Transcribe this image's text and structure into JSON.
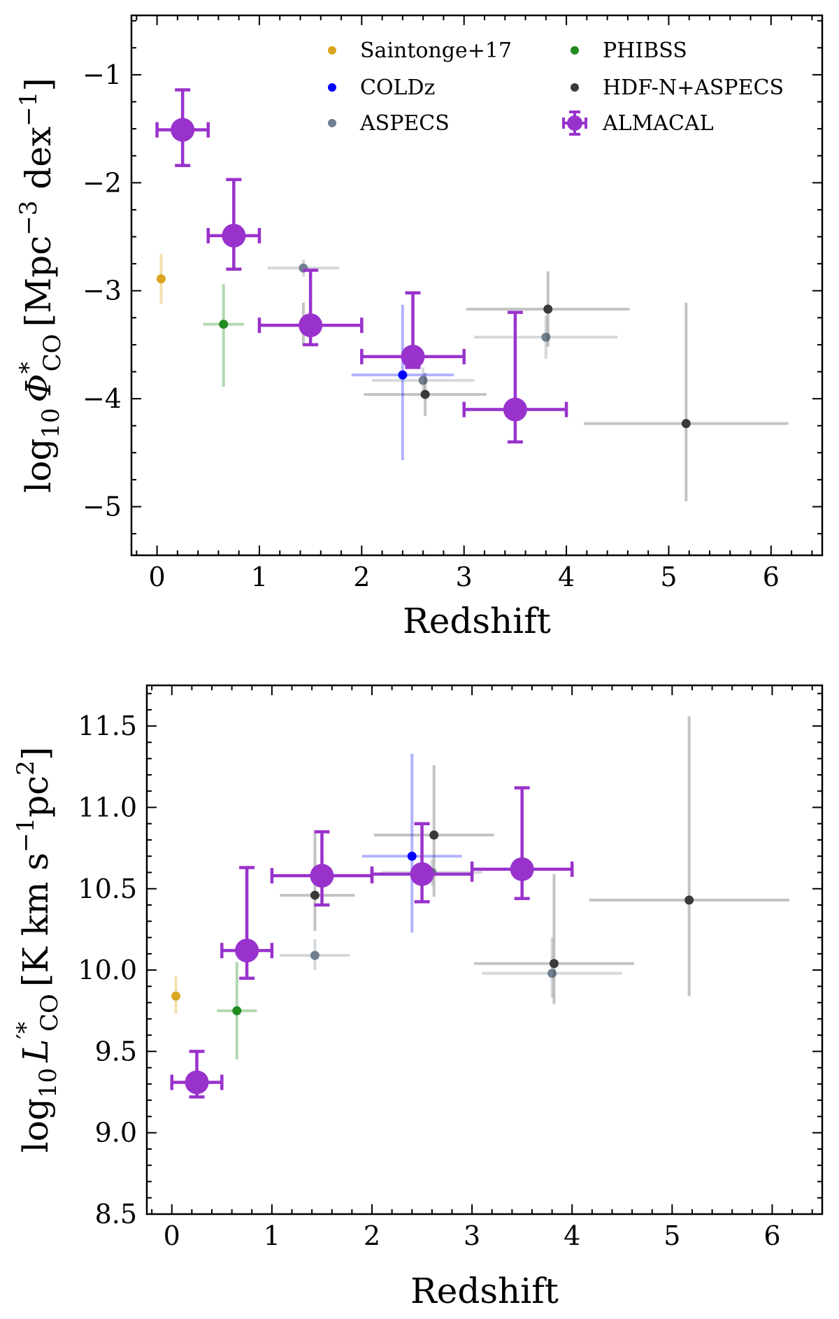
{
  "chart_data": [
    {
      "type": "scatter",
      "panel": "top",
      "xlabel": "Redshift",
      "ylabel": {
        "prefix": "log",
        "sub": "10",
        "symbol": "Φ",
        "sup": "*",
        "symsub": "CO",
        "units": "[Mpc",
        "u1sup": "−3",
        "u2": " dex",
        "u2sup": "−1",
        "close": "]"
      },
      "xlim": [
        -0.25,
        6.5
      ],
      "ylim": [
        -5.45,
        -0.45
      ],
      "xticks": [
        0,
        1,
        2,
        3,
        4,
        5,
        6
      ],
      "yticks": [
        -1,
        -2,
        -3,
        -4,
        -5
      ],
      "xtick_labels": [
        "0",
        "1",
        "2",
        "3",
        "4",
        "5",
        "6"
      ],
      "ytick_labels": [
        "−1",
        "−2",
        "−3",
        "−4",
        "−5"
      ],
      "legend": {
        "placement": "top",
        "entries": [
          {
            "label": "Saintonge+17",
            "series": "saintonge"
          },
          {
            "label": "PHIBSS",
            "series": "phibss"
          },
          {
            "label": "COLDz",
            "series": "coldz"
          },
          {
            "label": "HDF-N+ASPECS",
            "series": "hdfn"
          },
          {
            "label": "ASPECS",
            "series": "aspecs"
          },
          {
            "label": "ALMACAL",
            "series": "almacal"
          }
        ]
      },
      "series": [
        {
          "id": "saintonge",
          "name": "Saintonge+17",
          "color": "#DAA520",
          "points": [
            {
              "x": 0.04,
              "y": -2.89,
              "xerr": [
                0,
                0
              ],
              "yerr": [
                0.23,
                0.23
              ]
            }
          ]
        },
        {
          "id": "phibss",
          "name": "PHIBSS",
          "color": "#228B22",
          "points": [
            {
              "x": 0.65,
              "y": -3.31,
              "xerr": [
                0.2,
                0.2
              ],
              "yerr": [
                0.58,
                0.37
              ]
            }
          ]
        },
        {
          "id": "coldz",
          "name": "COLDz",
          "color": "#0000FF",
          "points": [
            {
              "x": 2.4,
              "y": -3.78,
              "xerr": [
                0.5,
                0.5
              ],
              "yerr": [
                0.79,
                0.65
              ]
            }
          ]
        },
        {
          "id": "aspecs",
          "name": "ASPECS",
          "color": "#708090",
          "points": [
            {
              "x": 1.43,
              "y": -2.79,
              "xerr": [
                0.35,
                0.35
              ],
              "yerr": [
                0.08,
                0.08
              ]
            },
            {
              "x": 2.6,
              "y": -3.83,
              "xerr": [
                0.5,
                0.5
              ],
              "yerr": [
                0.12,
                0.12
              ]
            },
            {
              "x": 3.8,
              "y": -3.43,
              "xerr": [
                0.7,
                0.7
              ],
              "yerr": [
                0.2,
                0.2
              ]
            }
          ]
        },
        {
          "id": "hdfn",
          "name": "HDF-N+ASPECS",
          "color": "#3a3a3a",
          "points": [
            {
              "x": 1.43,
              "y": -3.31,
              "xerr": [
                0,
                0
              ],
              "yerr": [
                0.2,
                0.2
              ]
            },
            {
              "x": 2.62,
              "y": -3.96,
              "xerr": [
                0.6,
                0.6
              ],
              "yerr": [
                0.2,
                0.2
              ]
            },
            {
              "x": 3.82,
              "y": -3.17,
              "xerr": [
                0.8,
                0.8
              ],
              "yerr": [
                0.35,
                0.35
              ]
            },
            {
              "x": 5.17,
              "y": -4.23,
              "xerr": [
                1.0,
                1.0
              ],
              "yerr": [
                0.72,
                1.12
              ]
            }
          ]
        },
        {
          "id": "almacal",
          "name": "ALMACAL",
          "color": "#9932CC",
          "points": [
            {
              "x": 0.25,
              "y": -1.51,
              "xerr": [
                0.25,
                0.25
              ],
              "yerr": [
                0.33,
                0.37
              ]
            },
            {
              "x": 0.75,
              "y": -2.49,
              "xerr": [
                0.25,
                0.25
              ],
              "yerr": [
                0.31,
                0.52
              ]
            },
            {
              "x": 1.5,
              "y": -3.32,
              "xerr": [
                0.5,
                0.5
              ],
              "yerr": [
                0.18,
                0.51
              ]
            },
            {
              "x": 2.5,
              "y": -3.61,
              "xerr": [
                0.5,
                0.5
              ],
              "yerr": [
                0.1,
                0.59
              ]
            },
            {
              "x": 3.5,
              "y": -4.1,
              "xerr": [
                0.5,
                0.5
              ],
              "yerr": [
                0.3,
                0.9
              ]
            }
          ]
        }
      ]
    },
    {
      "type": "scatter",
      "panel": "bottom",
      "xlabel": "Redshift",
      "ylabel": {
        "prefix": "log",
        "sub": "10",
        "symbol": "L",
        "sup": "′*",
        "symsub": "CO",
        "units": "[K km s",
        "u1sup": "−1",
        "u2": "pc",
        "u2sup": "2",
        "close": "]"
      },
      "xlim": [
        -0.25,
        6.5
      ],
      "ylim": [
        8.5,
        11.75
      ],
      "xticks": [
        0,
        1,
        2,
        3,
        4,
        5,
        6
      ],
      "yticks": [
        8.5,
        9.0,
        9.5,
        10.0,
        10.5,
        11.0,
        11.5
      ],
      "xtick_labels": [
        "0",
        "1",
        "2",
        "3",
        "4",
        "5",
        "6"
      ],
      "ytick_labels": [
        "8.5",
        "9.0",
        "9.5",
        "10.0",
        "10.5",
        "11.0",
        "11.5"
      ],
      "series": [
        {
          "id": "saintonge",
          "name": "Saintonge+17",
          "color": "#DAA520",
          "points": [
            {
              "x": 0.04,
              "y": 9.84,
              "xerr": [
                0,
                0
              ],
              "yerr": [
                0.11,
                0.12
              ]
            }
          ]
        },
        {
          "id": "phibss",
          "name": "PHIBSS",
          "color": "#228B22",
          "points": [
            {
              "x": 0.65,
              "y": 9.75,
              "xerr": [
                0.2,
                0.2
              ],
              "yerr": [
                0.3,
                0.3
              ]
            }
          ]
        },
        {
          "id": "coldz",
          "name": "COLDz",
          "color": "#0000FF",
          "points": [
            {
              "x": 2.4,
              "y": 10.7,
              "xerr": [
                0.5,
                0.5
              ],
              "yerr": [
                0.47,
                0.63
              ]
            }
          ]
        },
        {
          "id": "aspecs",
          "name": "ASPECS",
          "color": "#708090",
          "points": [
            {
              "x": 1.43,
              "y": 10.09,
              "xerr": [
                0.35,
                0.35
              ],
              "yerr": [
                0.09,
                0.1
              ]
            },
            {
              "x": 2.6,
              "y": 10.6,
              "xerr": [
                0.5,
                0.5
              ],
              "yerr": [
                0.08,
                0.08
              ]
            },
            {
              "x": 3.8,
              "y": 9.98,
              "xerr": [
                0.7,
                0.7
              ],
              "yerr": [
                0.15,
                0.22
              ]
            }
          ]
        },
        {
          "id": "hdfn",
          "name": "HDF-N+ASPECS",
          "color": "#3a3a3a",
          "points": [
            {
              "x": 1.43,
              "y": 10.46,
              "xerr": [
                0.35,
                0.4
              ],
              "yerr": [
                0.22,
                0.38
              ]
            },
            {
              "x": 2.62,
              "y": 10.83,
              "xerr": [
                0.6,
                0.6
              ],
              "yerr": [
                0.38,
                0.43
              ]
            },
            {
              "x": 3.82,
              "y": 10.04,
              "xerr": [
                0.8,
                0.8
              ],
              "yerr": [
                0.25,
                0.55
              ]
            },
            {
              "x": 5.17,
              "y": 10.43,
              "xerr": [
                1.0,
                1.0
              ],
              "yerr": [
                0.59,
                1.13
              ]
            }
          ]
        },
        {
          "id": "almacal",
          "name": "ALMACAL",
          "color": "#9932CC",
          "points": [
            {
              "x": 0.25,
              "y": 9.31,
              "xerr": [
                0.25,
                0.25
              ],
              "yerr": [
                0.09,
                0.19
              ]
            },
            {
              "x": 0.75,
              "y": 10.12,
              "xerr": [
                0.25,
                0.25
              ],
              "yerr": [
                0.17,
                0.51
              ]
            },
            {
              "x": 1.5,
              "y": 10.58,
              "xerr": [
                0.5,
                0.5
              ],
              "yerr": [
                0.18,
                0.27
              ]
            },
            {
              "x": 2.5,
              "y": 10.59,
              "xerr": [
                0.5,
                0.5
              ],
              "yerr": [
                0.17,
                0.31
              ]
            },
            {
              "x": 3.5,
              "y": 10.62,
              "xerr": [
                0.5,
                0.5
              ],
              "yerr": [
                0.18,
                0.5
              ]
            }
          ]
        }
      ]
    }
  ]
}
